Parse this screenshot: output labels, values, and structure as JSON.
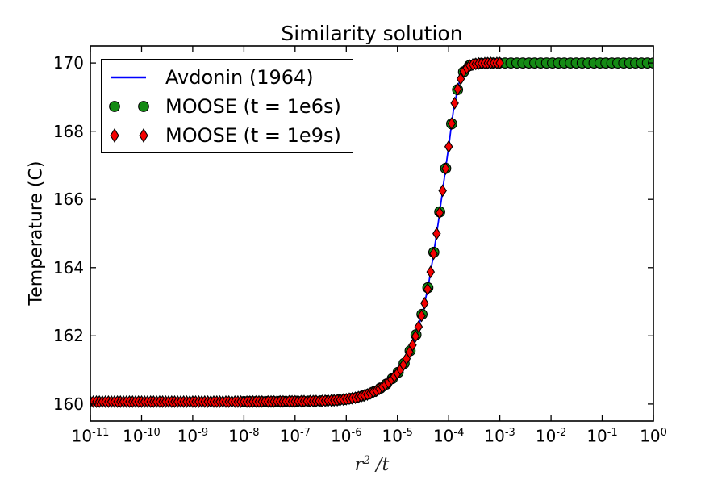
{
  "title": "Similarity solution",
  "axes": {
    "xlabel_var": "r",
    "xlabel_sup": "2",
    "xlabel_rest": " /t",
    "ylabel": "Temperature (C)",
    "x_tick_base": "10",
    "x_tick_exponents": [
      -11,
      -10,
      -9,
      -8,
      -7,
      -6,
      -5,
      -4,
      -3,
      -2,
      -1,
      0
    ],
    "y_ticks": [
      160,
      162,
      164,
      166,
      168,
      170
    ]
  },
  "legend": {
    "entries": [
      {
        "label": "Avdonin (1964)",
        "handle": "line",
        "color": "#0000ff"
      },
      {
        "label": "MOOSE (t = 1e6s)",
        "handle": "circle",
        "color": "#148a14"
      },
      {
        "label": "MOOSE (t = 1e9s)",
        "handle": "diamond",
        "color": "#f40000"
      }
    ]
  },
  "chart_data": {
    "type": "line",
    "title": "Similarity solution",
    "xlabel": "r^2 / t",
    "ylabel": "Temperature (C)",
    "x_scale": "log10",
    "xlim_log10": [
      -11,
      0
    ],
    "ylim": [
      159.5,
      170.5
    ],
    "x_tick_exponents": [
      -11,
      -10,
      -9,
      -8,
      -7,
      -6,
      -5,
      -4,
      -3,
      -2,
      -1,
      0
    ],
    "y_ticks": [
      160,
      162,
      164,
      166,
      168,
      170
    ],
    "grid": false,
    "legend_position": "upper left",
    "series": [
      {
        "name": "Avdonin (1964)",
        "type": "line",
        "color": "#0000ff",
        "line_width": 1.8,
        "points_log10x_T": [
          [
            -11.0,
            160.07
          ],
          [
            -9.0,
            160.07
          ],
          [
            -8.0,
            160.07
          ],
          [
            -7.0,
            160.08
          ],
          [
            -6.5,
            160.09
          ],
          [
            -6.2,
            160.11
          ],
          [
            -6.0,
            160.14
          ],
          [
            -5.8,
            160.19
          ],
          [
            -5.6,
            160.27
          ],
          [
            -5.4,
            160.4
          ],
          [
            -5.2,
            160.6
          ],
          [
            -5.0,
            160.9
          ],
          [
            -4.9,
            161.1
          ],
          [
            -4.8,
            161.4
          ],
          [
            -4.7,
            161.75
          ],
          [
            -4.6,
            162.2
          ],
          [
            -4.5,
            162.75
          ],
          [
            -4.4,
            163.45
          ],
          [
            -4.3,
            164.35
          ],
          [
            -4.2,
            165.35
          ],
          [
            -4.1,
            166.45
          ],
          [
            -4.0,
            167.55
          ],
          [
            -3.9,
            168.7
          ],
          [
            -3.8,
            169.4
          ],
          [
            -3.7,
            169.78
          ],
          [
            -3.6,
            169.92
          ],
          [
            -3.5,
            169.97
          ],
          [
            -3.4,
            169.99
          ],
          [
            -3.2,
            170.0
          ],
          [
            -3.0,
            170.0
          ],
          [
            -2.0,
            170.0
          ],
          [
            -1.0,
            170.0
          ],
          [
            0.0,
            170.0
          ]
        ]
      },
      {
        "name": "MOOSE (t = 1e6s)",
        "type": "scatter",
        "marker": "circle",
        "fill": "#148a14",
        "edge": "#000000",
        "marker_diameter": 12.6,
        "log10x_start": -8.0,
        "log10x_end": 0.0,
        "n_points": 70,
        "follows_curve": "Avdonin (1964)"
      },
      {
        "name": "MOOSE (t = 1e9s)",
        "type": "scatter",
        "marker": "thin-diamond",
        "fill": "#f40000",
        "edge": "#000000",
        "marker_width": 9.2,
        "marker_height": 14,
        "log10x_start": -11.0,
        "log10x_end": -3.0,
        "n_points": 137,
        "follows_curve": "Avdonin (1964)"
      }
    ]
  }
}
